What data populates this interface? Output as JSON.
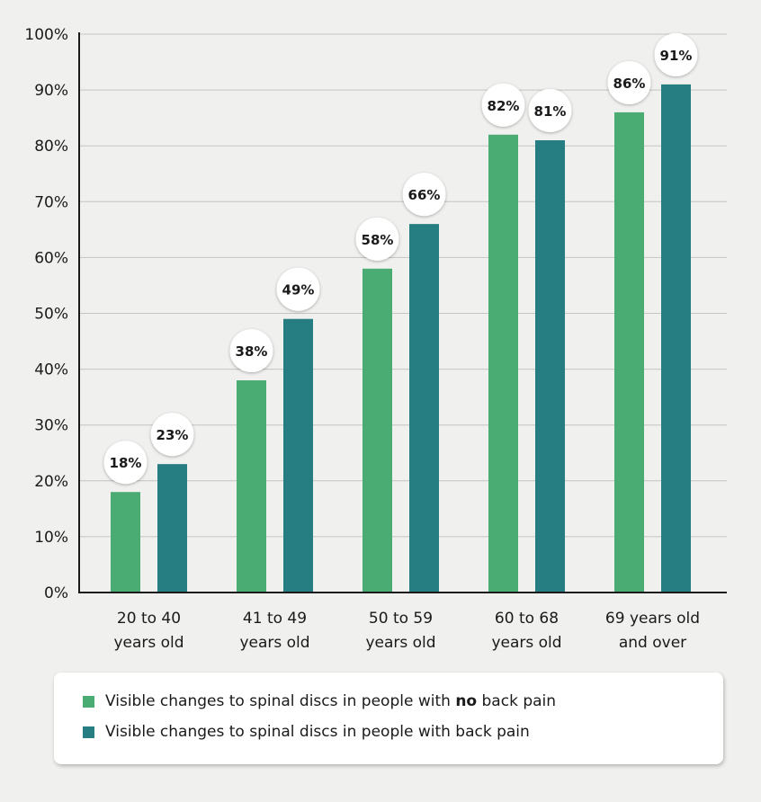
{
  "chart_data": {
    "type": "bar",
    "categories": [
      [
        "20 to 40",
        "years old"
      ],
      [
        "41 to 49",
        "years old"
      ],
      [
        "50 to 59",
        "years old"
      ],
      [
        "60 to 68",
        "years old"
      ],
      [
        "69 years old",
        "and over"
      ]
    ],
    "series": [
      {
        "name": "Visible changes to spinal discs in people with no back pain",
        "color": "#4aab73",
        "values": [
          18,
          38,
          58,
          82,
          86
        ]
      },
      {
        "name": "Visible changes to spinal discs in people with back pain",
        "color": "#267d82",
        "values": [
          23,
          49,
          66,
          81,
          91
        ]
      }
    ],
    "ylim": [
      0,
      100
    ],
    "yticks": [
      "0%",
      "10%",
      "20%",
      "30%",
      "40%",
      "50%",
      "60%",
      "70%",
      "80%",
      "90%",
      "100%"
    ],
    "data_label_suffix": "%",
    "grid": true,
    "legend_position": "bottom"
  },
  "legend": {
    "items": [
      {
        "pre": "Visible changes to spinal discs in people with ",
        "bold": "no",
        "post": " back pain"
      },
      {
        "pre": "Visible changes to spinal discs in people with back pain",
        "bold": "",
        "post": ""
      }
    ]
  }
}
